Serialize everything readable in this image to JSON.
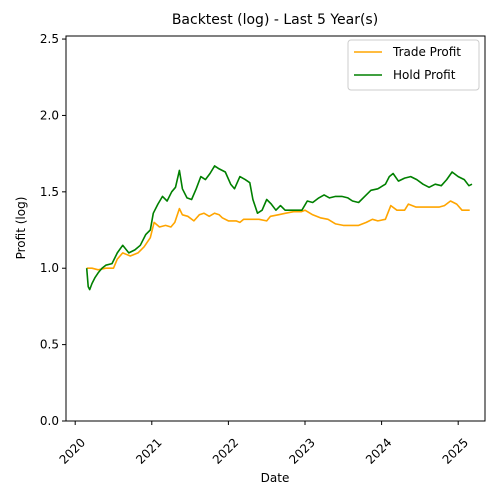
{
  "chart_data": {
    "type": "line",
    "title": "Backtest (log) - Last 5 Year(s)",
    "xlabel": "Date",
    "ylabel": "Profit (log)",
    "xlim": [
      2019.88,
      2025.35
    ],
    "ylim": [
      0.0,
      2.52
    ],
    "yticks": [
      0.0,
      0.5,
      1.0,
      1.5,
      2.0,
      2.5
    ],
    "ytick_labels": [
      "0.0",
      "0.5",
      "1.0",
      "1.5",
      "2.0",
      "2.5"
    ],
    "xticks": [
      2020,
      2021,
      2022,
      2023,
      2024,
      2025
    ],
    "xtick_labels": [
      "2020",
      "2021",
      "2022",
      "2023",
      "2024",
      "2025"
    ],
    "grid": false,
    "legend_position": "upper right",
    "series": [
      {
        "name": "Trade Profit",
        "color": "#ffa500",
        "points": [
          [
            2020.15,
            1.0
          ],
          [
            2020.22,
            1.0
          ],
          [
            2020.3,
            0.99
          ],
          [
            2020.4,
            1.0
          ],
          [
            2020.5,
            1.0
          ],
          [
            2020.55,
            1.06
          ],
          [
            2020.62,
            1.1
          ],
          [
            2020.72,
            1.08
          ],
          [
            2020.82,
            1.1
          ],
          [
            2020.9,
            1.14
          ],
          [
            2020.98,
            1.2
          ],
          [
            2021.03,
            1.3
          ],
          [
            2021.1,
            1.27
          ],
          [
            2021.18,
            1.28
          ],
          [
            2021.25,
            1.27
          ],
          [
            2021.3,
            1.3
          ],
          [
            2021.36,
            1.39
          ],
          [
            2021.4,
            1.35
          ],
          [
            2021.47,
            1.34
          ],
          [
            2021.55,
            1.31
          ],
          [
            2021.62,
            1.35
          ],
          [
            2021.68,
            1.36
          ],
          [
            2021.75,
            1.34
          ],
          [
            2021.82,
            1.36
          ],
          [
            2021.88,
            1.35
          ],
          [
            2021.92,
            1.33
          ],
          [
            2022.0,
            1.31
          ],
          [
            2022.1,
            1.31
          ],
          [
            2022.15,
            1.3
          ],
          [
            2022.2,
            1.32
          ],
          [
            2022.3,
            1.32
          ],
          [
            2022.4,
            1.32
          ],
          [
            2022.5,
            1.31
          ],
          [
            2022.55,
            1.34
          ],
          [
            2022.65,
            1.35
          ],
          [
            2022.75,
            1.36
          ],
          [
            2022.85,
            1.37
          ],
          [
            2022.95,
            1.37
          ],
          [
            2023.0,
            1.38
          ],
          [
            2023.1,
            1.35
          ],
          [
            2023.2,
            1.33
          ],
          [
            2023.3,
            1.32
          ],
          [
            2023.4,
            1.29
          ],
          [
            2023.5,
            1.28
          ],
          [
            2023.6,
            1.28
          ],
          [
            2023.7,
            1.28
          ],
          [
            2023.8,
            1.3
          ],
          [
            2023.88,
            1.32
          ],
          [
            2023.95,
            1.31
          ],
          [
            2024.05,
            1.32
          ],
          [
            2024.12,
            1.41
          ],
          [
            2024.2,
            1.38
          ],
          [
            2024.3,
            1.38
          ],
          [
            2024.35,
            1.42
          ],
          [
            2024.45,
            1.4
          ],
          [
            2024.55,
            1.4
          ],
          [
            2024.65,
            1.4
          ],
          [
            2024.75,
            1.4
          ],
          [
            2024.82,
            1.41
          ],
          [
            2024.9,
            1.44
          ],
          [
            2024.98,
            1.42
          ],
          [
            2025.05,
            1.38
          ],
          [
            2025.15,
            1.38
          ]
        ]
      },
      {
        "name": "Hold Profit",
        "color": "#008000",
        "points": [
          [
            2020.15,
            1.0
          ],
          [
            2020.17,
            0.88
          ],
          [
            2020.19,
            0.86
          ],
          [
            2020.22,
            0.9
          ],
          [
            2020.26,
            0.94
          ],
          [
            2020.3,
            0.97
          ],
          [
            2020.35,
            1.0
          ],
          [
            2020.4,
            1.02
          ],
          [
            2020.48,
            1.03
          ],
          [
            2020.55,
            1.1
          ],
          [
            2020.62,
            1.15
          ],
          [
            2020.7,
            1.1
          ],
          [
            2020.78,
            1.12
          ],
          [
            2020.85,
            1.15
          ],
          [
            2020.92,
            1.22
          ],
          [
            2020.98,
            1.25
          ],
          [
            2021.02,
            1.36
          ],
          [
            2021.08,
            1.42
          ],
          [
            2021.14,
            1.47
          ],
          [
            2021.2,
            1.44
          ],
          [
            2021.26,
            1.5
          ],
          [
            2021.31,
            1.53
          ],
          [
            2021.36,
            1.64
          ],
          [
            2021.4,
            1.52
          ],
          [
            2021.46,
            1.46
          ],
          [
            2021.52,
            1.45
          ],
          [
            2021.58,
            1.52
          ],
          [
            2021.64,
            1.6
          ],
          [
            2021.7,
            1.58
          ],
          [
            2021.76,
            1.62
          ],
          [
            2021.82,
            1.67
          ],
          [
            2021.88,
            1.65
          ],
          [
            2021.96,
            1.63
          ],
          [
            2022.03,
            1.55
          ],
          [
            2022.08,
            1.52
          ],
          [
            2022.15,
            1.6
          ],
          [
            2022.22,
            1.58
          ],
          [
            2022.28,
            1.56
          ],
          [
            2022.32,
            1.45
          ],
          [
            2022.38,
            1.36
          ],
          [
            2022.44,
            1.38
          ],
          [
            2022.5,
            1.45
          ],
          [
            2022.56,
            1.42
          ],
          [
            2022.62,
            1.38
          ],
          [
            2022.68,
            1.41
          ],
          [
            2022.74,
            1.38
          ],
          [
            2022.82,
            1.38
          ],
          [
            2022.9,
            1.38
          ],
          [
            2022.96,
            1.38
          ],
          [
            2023.03,
            1.44
          ],
          [
            2023.1,
            1.43
          ],
          [
            2023.18,
            1.46
          ],
          [
            2023.25,
            1.48
          ],
          [
            2023.32,
            1.46
          ],
          [
            2023.4,
            1.47
          ],
          [
            2023.48,
            1.47
          ],
          [
            2023.56,
            1.46
          ],
          [
            2023.62,
            1.44
          ],
          [
            2023.7,
            1.43
          ],
          [
            2023.78,
            1.47
          ],
          [
            2023.86,
            1.51
          ],
          [
            2023.95,
            1.52
          ],
          [
            2024.05,
            1.55
          ],
          [
            2024.1,
            1.6
          ],
          [
            2024.15,
            1.62
          ],
          [
            2024.22,
            1.57
          ],
          [
            2024.3,
            1.59
          ],
          [
            2024.38,
            1.6
          ],
          [
            2024.46,
            1.58
          ],
          [
            2024.54,
            1.55
          ],
          [
            2024.62,
            1.53
          ],
          [
            2024.7,
            1.55
          ],
          [
            2024.78,
            1.54
          ],
          [
            2024.85,
            1.58
          ],
          [
            2024.92,
            1.63
          ],
          [
            2025.0,
            1.6
          ],
          [
            2025.08,
            1.58
          ],
          [
            2025.14,
            1.54
          ],
          [
            2025.18,
            1.55
          ]
        ]
      }
    ]
  }
}
